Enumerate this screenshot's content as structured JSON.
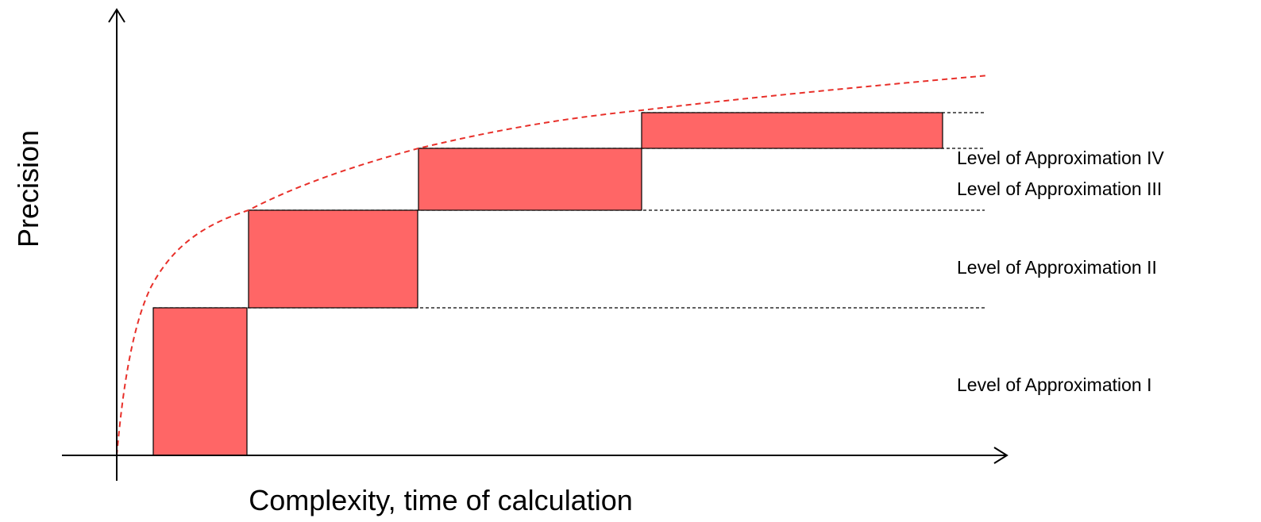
{
  "labels": {
    "y_axis": "Precision",
    "x_axis": "Complexity, time of calculation",
    "levels": [
      "Level of Approximation I",
      "Level of Approximation II",
      "Level of Approximation III",
      "Level of Approximation IV"
    ]
  },
  "colors": {
    "rect_fill": "#ff6666",
    "curve": "#e8302a"
  }
}
